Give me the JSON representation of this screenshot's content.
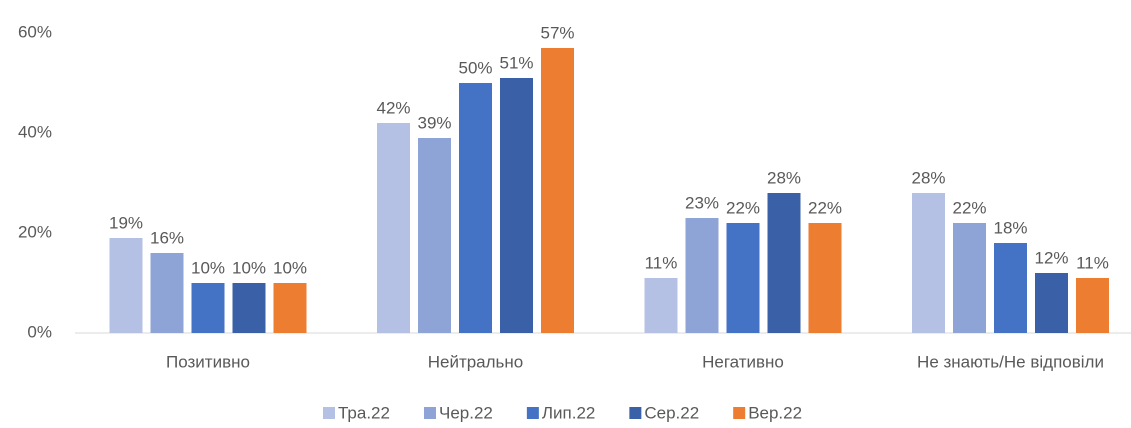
{
  "chart_data": {
    "type": "bar",
    "categories": [
      "Позитивно",
      "Нейтрально",
      "Негативно",
      "Не знають/Не відповіли"
    ],
    "series": [
      {
        "name": "Тра.22",
        "color": "#b4c1e4",
        "values": [
          19,
          42,
          11,
          28
        ],
        "value_labels": [
          "19%",
          "42%",
          "11%",
          "28%"
        ]
      },
      {
        "name": "Чер.22",
        "color": "#8fa4d6",
        "values": [
          16,
          39,
          23,
          22
        ],
        "value_labels": [
          "16%",
          "39%",
          "23%",
          "22%"
        ]
      },
      {
        "name": "Лип.22",
        "color": "#4472c4",
        "values": [
          10,
          50,
          22,
          18
        ],
        "value_labels": [
          "10%",
          "50%",
          "22%",
          "18%"
        ]
      },
      {
        "name": "Сер.22",
        "color": "#3a60a8",
        "values": [
          10,
          51,
          28,
          12
        ],
        "value_labels": [
          "10%",
          "51%",
          "28%",
          "12%"
        ]
      },
      {
        "name": "Вер.22",
        "color": "#ed7d31",
        "values": [
          10,
          57,
          22,
          11
        ],
        "value_labels": [
          "10%",
          "57%",
          "22%",
          "11%"
        ]
      }
    ],
    "ylim": [
      0,
      60
    ],
    "yticks": [
      {
        "value": 0,
        "label": "0%"
      },
      {
        "value": 20,
        "label": "20%"
      },
      {
        "value": 40,
        "label": "40%"
      },
      {
        "value": 60,
        "label": "60%"
      }
    ],
    "grid": false,
    "legend": "bottom"
  }
}
